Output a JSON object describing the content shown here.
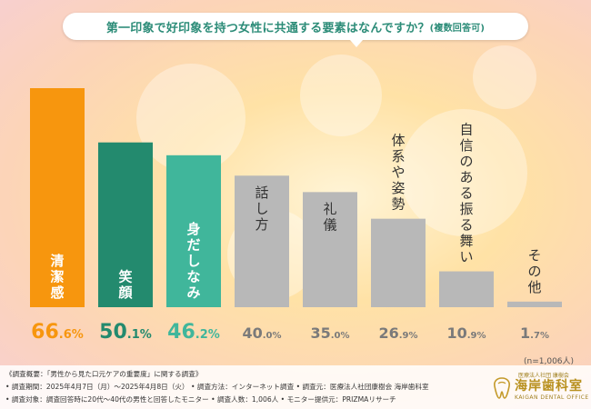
{
  "title": {
    "main": "第一印象で好印象を持つ女性に共通する要素はなんですか？",
    "sub": "(複数回答可)"
  },
  "colors": {
    "top1": "#f7960e",
    "top2": "#238a6e",
    "top3": "#40b69b",
    "other": "#b8b8b8",
    "label_top1": "#f7960e",
    "label_top2": "#238a6e",
    "label_top3": "#40b69b",
    "label_other": "#7a7a7a"
  },
  "chart_data": {
    "type": "bar",
    "title": "第一印象で好印象を持つ女性に共通する要素はなんですか？(複数回答可)",
    "categories": [
      "清潔感",
      "笑顔",
      "身だしなみ",
      "話し方",
      "礼儀",
      "体系や姿勢",
      "自信のある振る舞い",
      "その他"
    ],
    "values": [
      66.6,
      50.1,
      46.2,
      40.0,
      35.0,
      26.9,
      10.9,
      1.7
    ],
    "value_labels": [
      {
        "int": "66",
        "dec": ".6",
        "unit": "%"
      },
      {
        "int": "50",
        "dec": ".1",
        "unit": "%"
      },
      {
        "int": "46",
        "dec": ".2",
        "unit": "%"
      },
      {
        "int": "40",
        "dec": ".0",
        "unit": "%"
      },
      {
        "int": "35",
        "dec": ".0",
        "unit": "%"
      },
      {
        "int": "26",
        "dec": ".9",
        "unit": "%"
      },
      {
        "int": "10",
        "dec": ".9",
        "unit": "%"
      },
      {
        "int": "1",
        "dec": ".7",
        "unit": "%"
      }
    ],
    "ylim": [
      0,
      66.6
    ],
    "xlabel": "",
    "ylabel": "",
    "grid": false,
    "n_label": "(n=1,006人)"
  },
  "notes": {
    "line1": "《調査概要：「男性から見た口元ケアの重要度」に関する調査》",
    "line2": "• 調査期間：2025年4月7日（月）～2025年4月8日（火）  • 調査方法：インターネット調査    • 調査元：医療法人社団康樹会 海岸歯科室",
    "line3": "• 調査対象：調査回答時に20代～40代の男性と回答したモニター    • 調査人数：1,006人   • モニター提供元：PRIZMAリサーチ"
  },
  "logo": {
    "small": "医療法人社団 康樹会",
    "main": "海岸歯科室",
    "en": "KAIGAN DENTAL OFFICE"
  }
}
